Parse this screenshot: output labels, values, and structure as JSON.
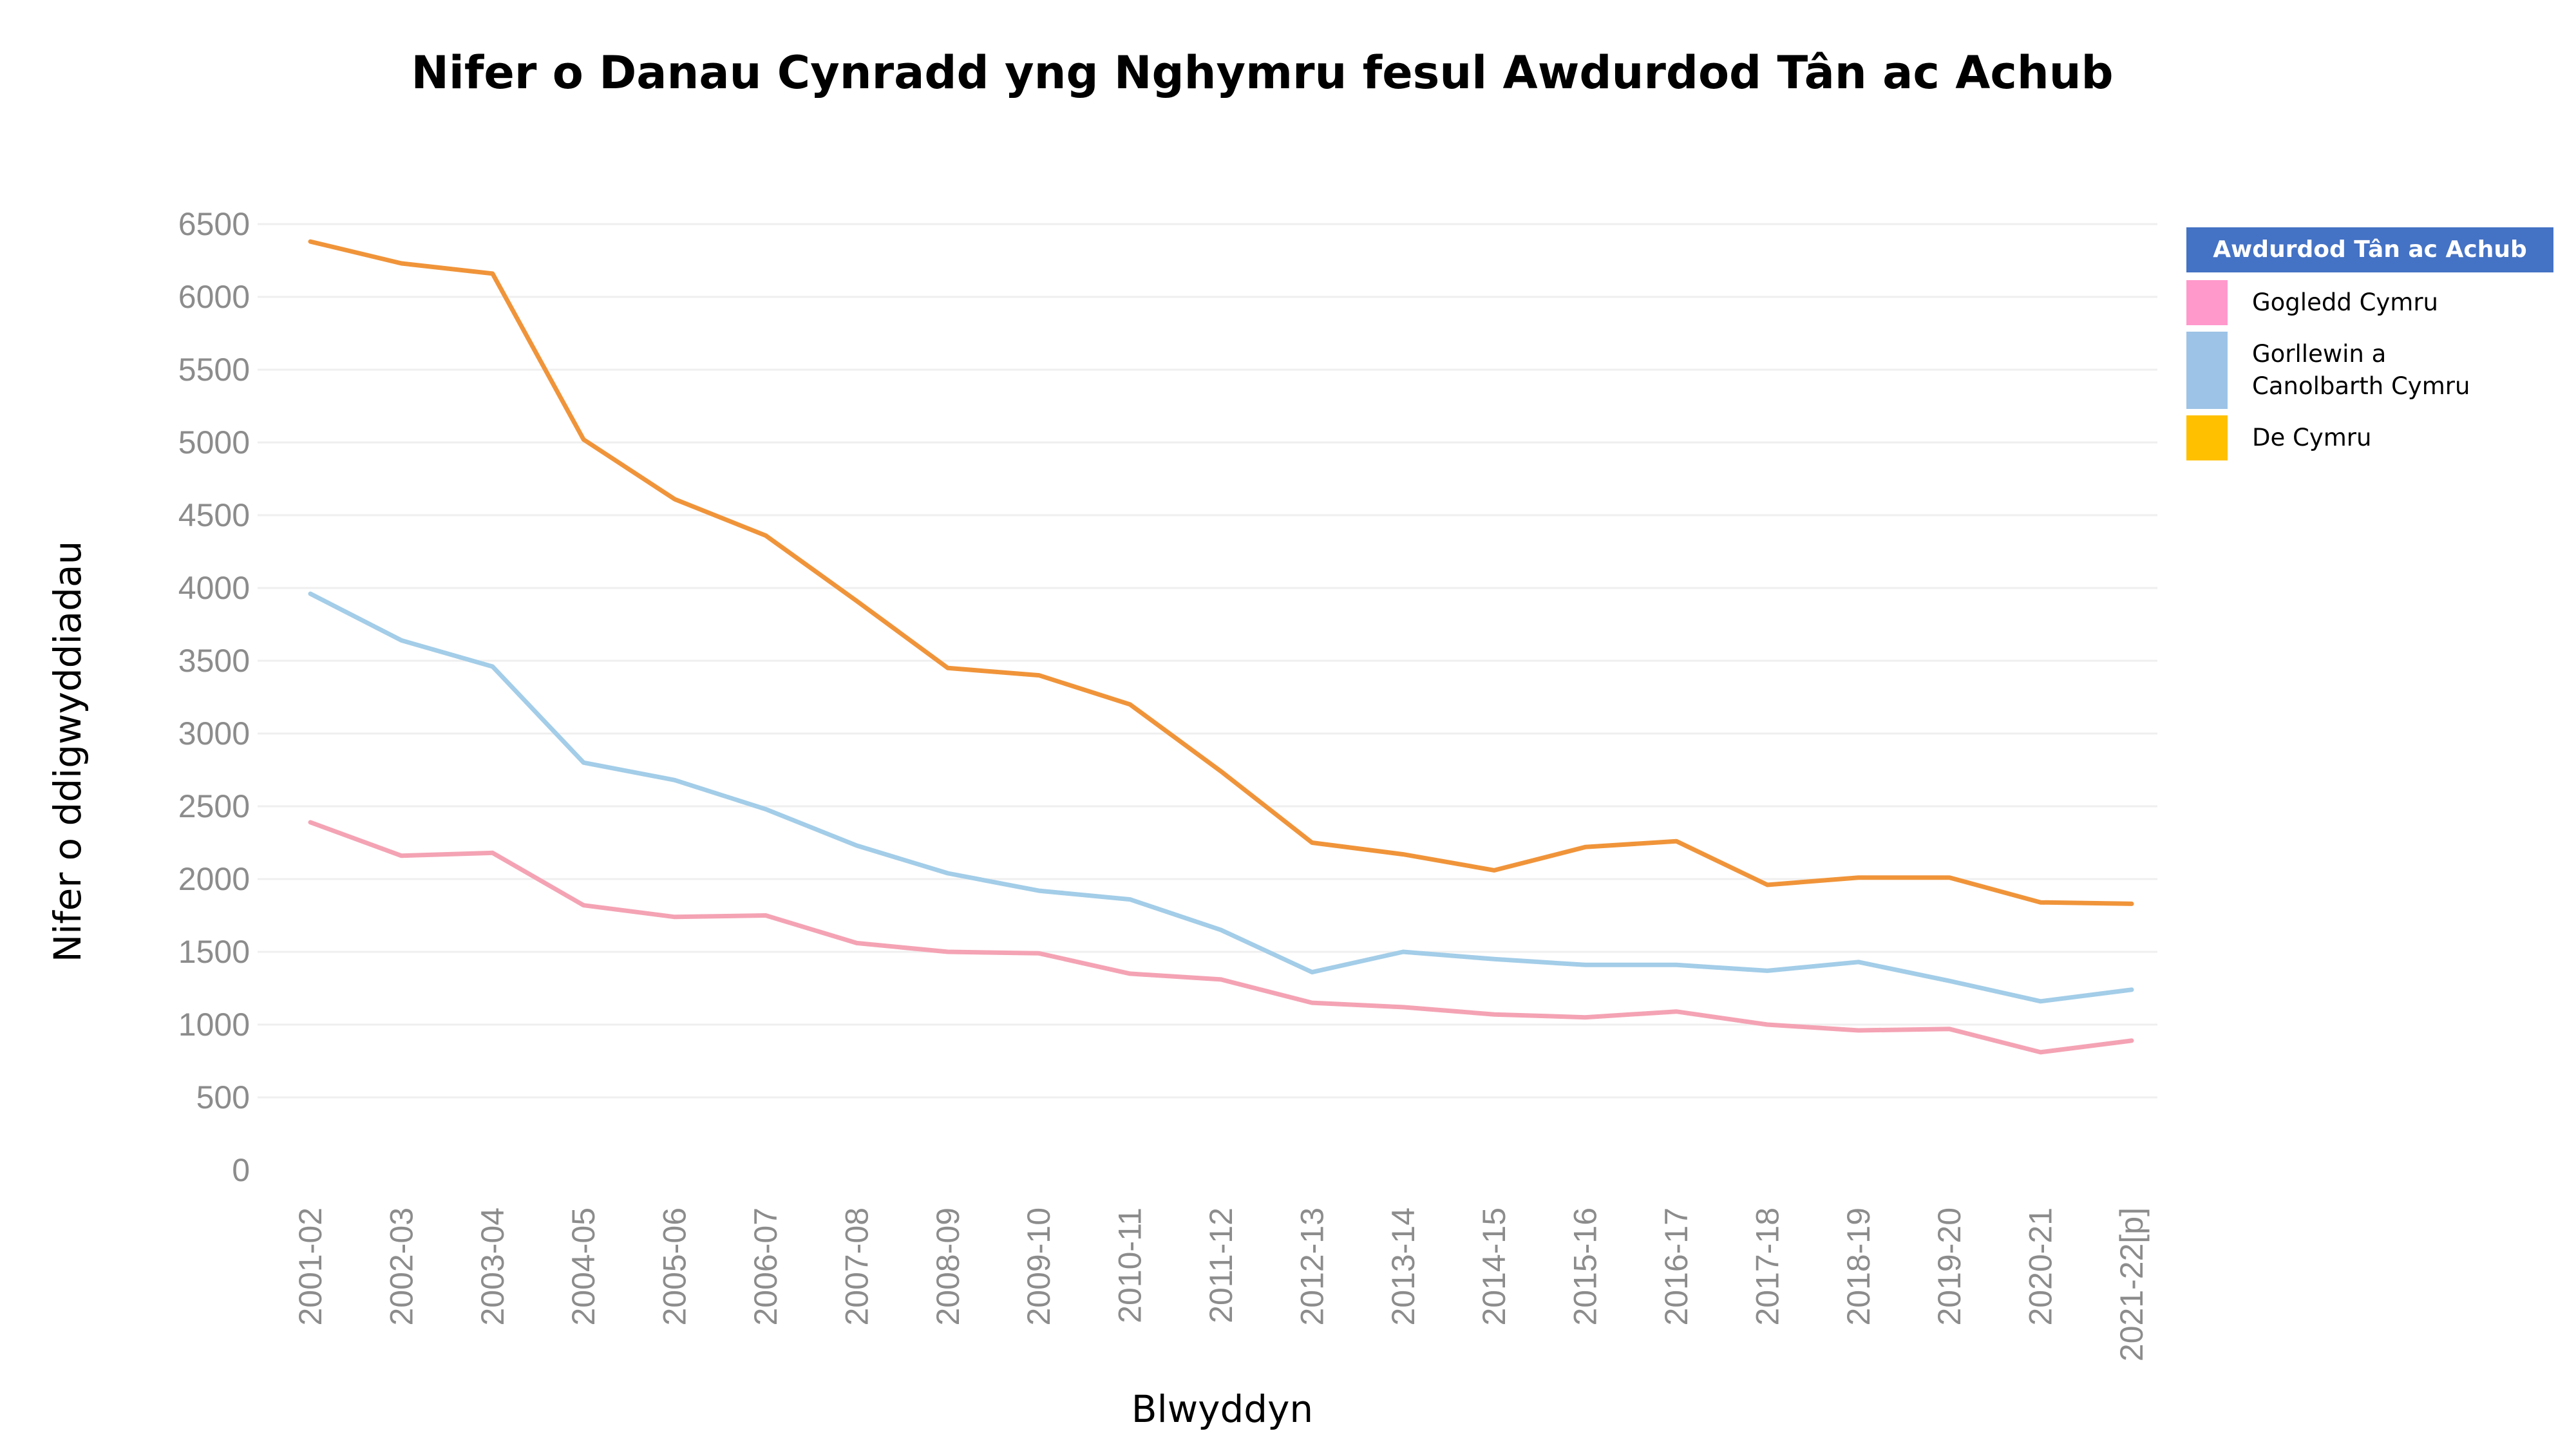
{
  "chart_data": {
    "type": "line",
    "title": "Nifer o Danau Cynradd yng Nghymru fesul Awdurdod Tân ac Achub",
    "xlabel": "Blwyddyn",
    "ylabel": "Nifer o ddigwyddiadau",
    "ylim": [
      0,
      6700
    ],
    "yticks": [
      0,
      500,
      1000,
      1500,
      2000,
      2500,
      3000,
      3500,
      4000,
      4500,
      5000,
      5500,
      6000,
      6500
    ],
    "categories": [
      "2001-02",
      "2002-03",
      "2003-04",
      "2004-05",
      "2005-06",
      "2006-07",
      "2007-08",
      "2008-09",
      "2009-10",
      "2010-11",
      "2011-12",
      "2012-13",
      "2013-14",
      "2014-15",
      "2015-16",
      "2016-17",
      "2017-18",
      "2018-19",
      "2019-20",
      "2020-21",
      "2021-22[p]"
    ],
    "legend_title": "Awdurdod Tân ac Achub",
    "legend_position": "right",
    "grid": "horizontal",
    "series": [
      {
        "name": "Gogledd Cymru",
        "line_color": "#f4a3b4",
        "swatch_color": "#ff99cc",
        "values": [
          2390,
          2160,
          2180,
          1820,
          1740,
          1750,
          1560,
          1500,
          1490,
          1350,
          1310,
          1150,
          1120,
          1070,
          1050,
          1090,
          1000,
          960,
          970,
          810,
          890
        ]
      },
      {
        "name": "Gorllewin a Canolbarth Cymru",
        "label_lines": [
          "Gorllewin a",
          "Canolbarth Cymru"
        ],
        "line_color": "#a3cde8",
        "swatch_color": "#9dc3e6",
        "values": [
          3960,
          3640,
          3460,
          2800,
          2680,
          2480,
          2230,
          2040,
          1920,
          1860,
          1650,
          1360,
          1500,
          1450,
          1410,
          1410,
          1370,
          1430,
          1300,
          1160,
          1240
        ]
      },
      {
        "name": "De Cymru",
        "line_color": "#f0943a",
        "swatch_color": "#ffc000",
        "values": [
          6380,
          6230,
          6160,
          5020,
          4610,
          4360,
          3910,
          3450,
          3400,
          3200,
          2740,
          2250,
          2170,
          2060,
          2220,
          2260,
          1960,
          2010,
          2010,
          1840,
          1830
        ]
      }
    ]
  }
}
